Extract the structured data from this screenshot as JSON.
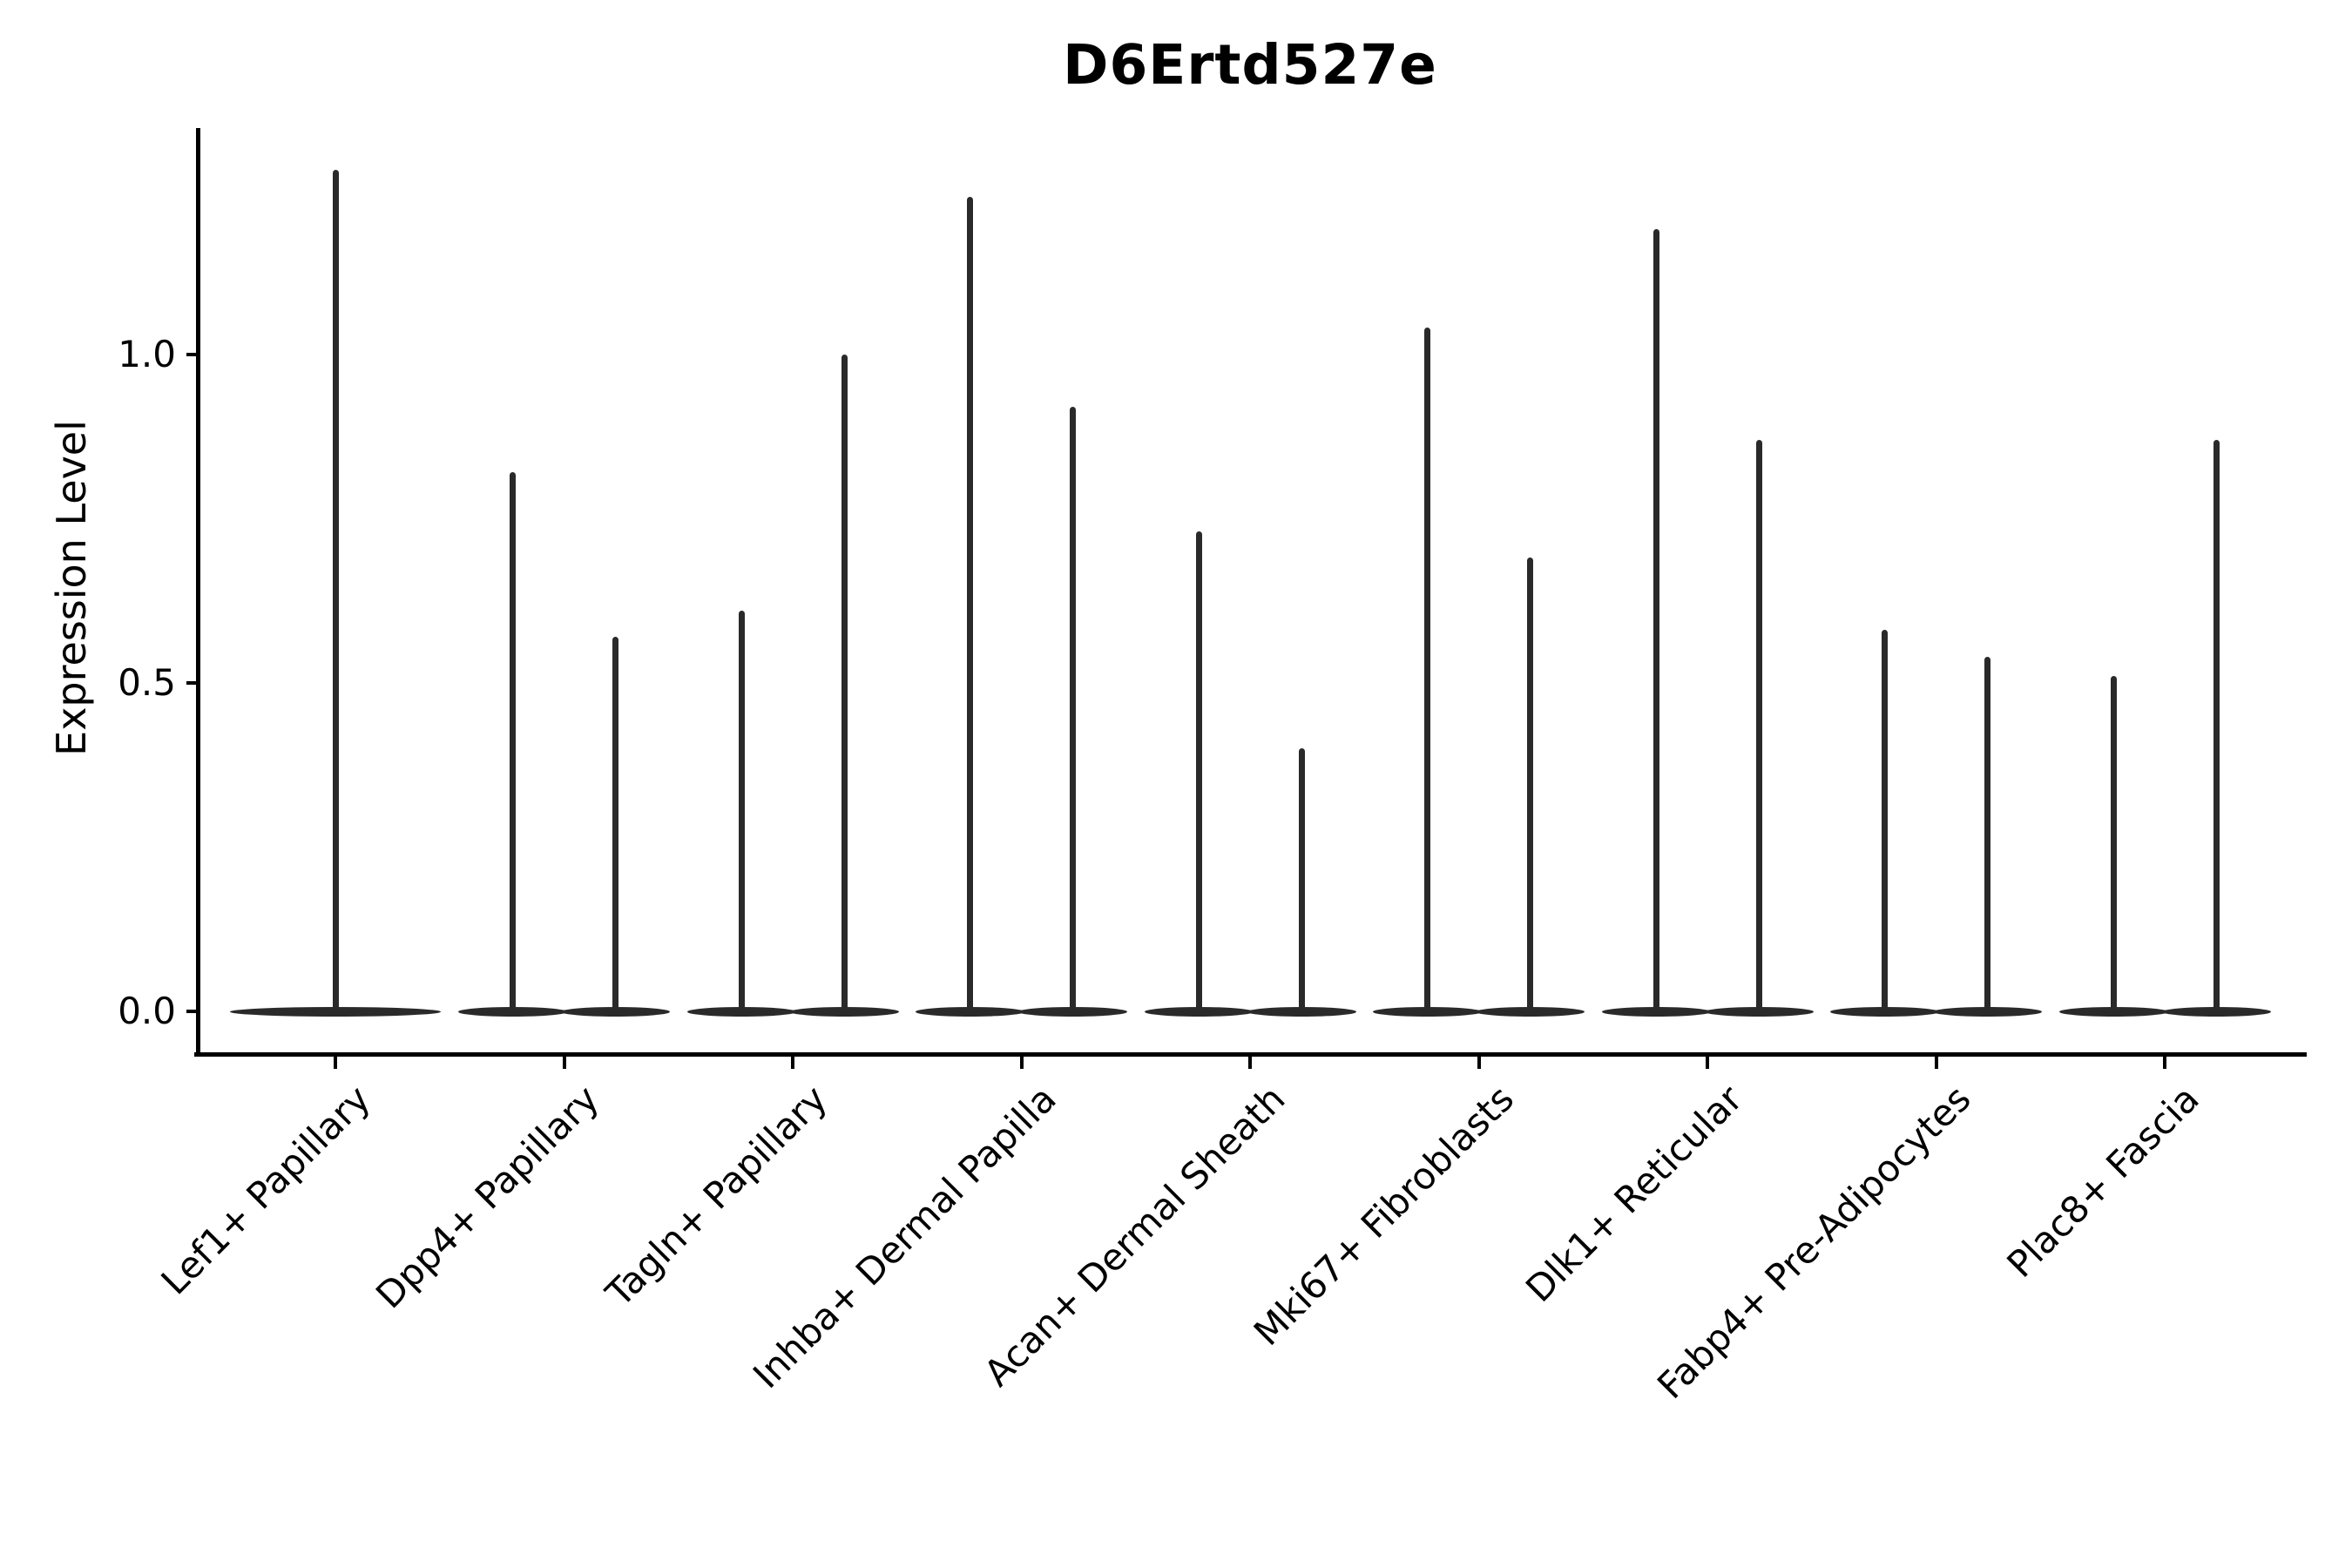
{
  "title": "D6Ertd527e",
  "axes": {
    "ylabel": "Expression Level",
    "ytick_labels": [
      "0.0",
      "0.5",
      "1.0"
    ]
  },
  "chart_data": {
    "type": "violin",
    "title": "D6Ertd527e",
    "xlabel": "",
    "ylabel": "Expression Level",
    "ylim": [
      -0.07,
      1.35
    ],
    "yticks": [
      0.0,
      0.5,
      1.0
    ],
    "grid": false,
    "legend": "none",
    "description": "Single-cell expression violin plot. Each violin is a flat wide density mass at expression 0 with a thin vertical spike up to the maximum expression value. The first category shows one centered violin; all other categories show a pair of violins.",
    "categories": [
      "Lef1+ Papillary",
      "Dpp4+ Papillary",
      "Tagln+ Papillary",
      "Inhba+ Dermal Papilla",
      "Acan+ Dermal Sheath",
      "Mki67+ Fibroblasts",
      "Dlk1+ Reticular",
      "Fabp4+ Pre-Adipocytes",
      "Plac8+ Fascia"
    ],
    "violins": [
      {
        "category": "Lef1+ Papillary",
        "spikes": [
          {
            "pos": "center",
            "max": 1.28
          }
        ]
      },
      {
        "category": "Dpp4+ Papillary",
        "spikes": [
          {
            "pos": "left",
            "max": 0.82
          },
          {
            "pos": "right",
            "max": 0.57
          }
        ]
      },
      {
        "category": "Tagln+ Papillary",
        "spikes": [
          {
            "pos": "left",
            "max": 0.61
          },
          {
            "pos": "right",
            "max": 1.0
          }
        ]
      },
      {
        "category": "Inhba+ Dermal Papilla",
        "spikes": [
          {
            "pos": "left",
            "max": 1.24
          },
          {
            "pos": "right",
            "max": 0.92
          }
        ]
      },
      {
        "category": "Acan+ Dermal Sheath",
        "spikes": [
          {
            "pos": "left",
            "max": 0.73
          },
          {
            "pos": "right",
            "max": 0.4
          }
        ]
      },
      {
        "category": "Mki67+ Fibroblasts",
        "spikes": [
          {
            "pos": "left",
            "max": 1.04
          },
          {
            "pos": "right",
            "max": 0.69
          }
        ]
      },
      {
        "category": "Dlk1+ Reticular",
        "spikes": [
          {
            "pos": "left",
            "max": 1.19
          },
          {
            "pos": "right",
            "max": 0.87
          }
        ]
      },
      {
        "category": "Fabp4+ Pre-Adipocytes",
        "spikes": [
          {
            "pos": "left",
            "max": 0.58
          },
          {
            "pos": "right",
            "max": 0.54
          }
        ]
      },
      {
        "category": "Plac8+ Fascia",
        "spikes": [
          {
            "pos": "left",
            "max": 0.51
          },
          {
            "pos": "right",
            "max": 0.87
          }
        ]
      }
    ],
    "colors": {
      "violin": "#2a2a2a",
      "axis": "#000000",
      "text": "#000000",
      "background": "#ffffff"
    }
  }
}
